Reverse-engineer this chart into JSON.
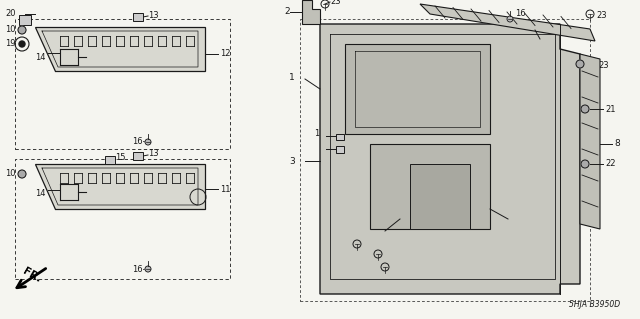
{
  "bg_color": "#f5f5f0",
  "line_color": "#1a1a1a",
  "diagram_id": "5HJA B3950D",
  "figsize": [
    6.4,
    3.19
  ],
  "dpi": 100
}
